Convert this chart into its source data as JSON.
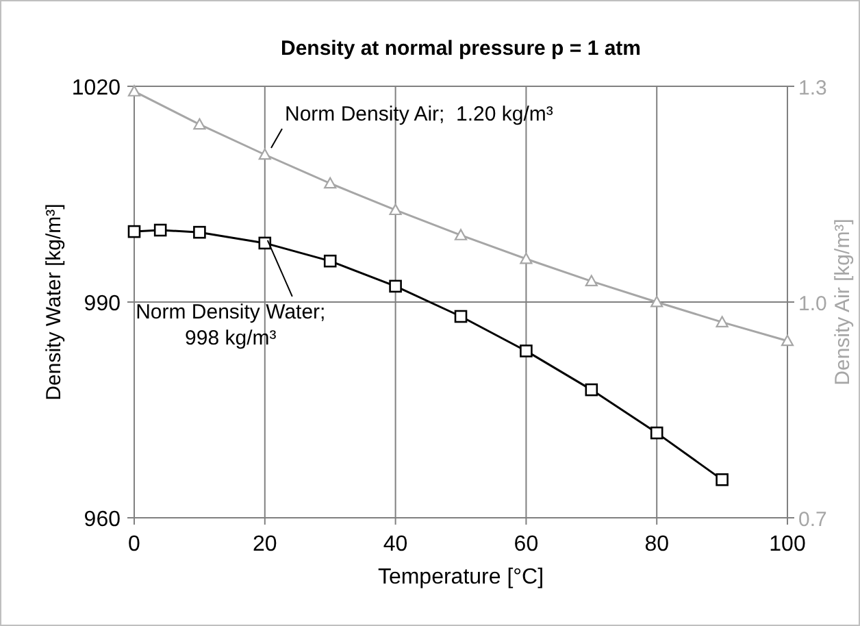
{
  "chart_data": {
    "type": "line",
    "title": "Density at normal pressure p = 1 atm",
    "xlabel": "Temperature  [°C]",
    "ylabel": "Density Water  [kg/m³]",
    "y2label": "Density Air  [kg/m³]",
    "xlim": [
      0,
      100
    ],
    "xticks": [
      0,
      20,
      40,
      60,
      80,
      100
    ],
    "ylim": [
      960,
      1020
    ],
    "yticks": [
      960,
      990,
      1020
    ],
    "y2lim": [
      0.7,
      1.3
    ],
    "y2ticks": [
      {
        "value": 0.7,
        "label": "0.7"
      },
      {
        "value": 1.0,
        "label": "1.0"
      },
      {
        "value": 1.3,
        "label": "1.3"
      }
    ],
    "grid": true,
    "line_style": "solid",
    "series": [
      {
        "color": "#000000",
        "marker": "square",
        "x": [
          0,
          4,
          10,
          20,
          30,
          40,
          50,
          60,
          70,
          80,
          90
        ],
        "values": [
          999.8,
          1000.0,
          999.7,
          998.2,
          995.7,
          992.2,
          988.0,
          983.2,
          977.8,
          971.8,
          965.3
        ]
      },
      {
        "color": "#a6a6a6",
        "marker": "triangle",
        "axis": "y2",
        "x": [
          0,
          10,
          20,
          30,
          40,
          50,
          60,
          70,
          80,
          90,
          100
        ],
        "values": [
          1.293,
          1.247,
          1.205,
          1.165,
          1.128,
          1.093,
          1.06,
          1.029,
          1.0,
          0.972,
          0.946
        ]
      }
    ],
    "annotations": [
      "Norm Density Air;  1.20 kg/m³",
      {
        "text": "Norm Density Water;\n998 kg/m³",
        "x": 20,
        "y": 998.2
      }
    ]
  }
}
